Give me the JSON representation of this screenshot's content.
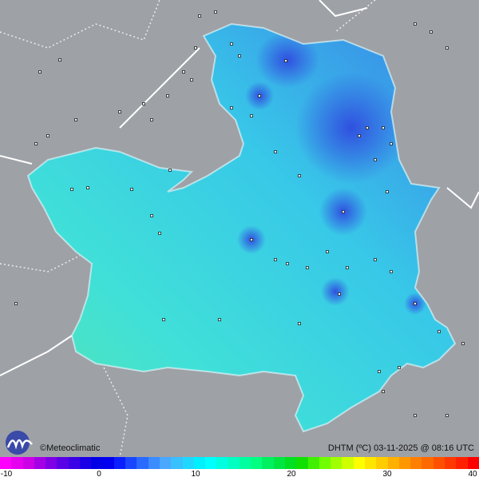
{
  "map": {
    "credit": "©Meteoclimatic",
    "variable": "DHTM (ºC)",
    "timestamp": "03-11-2025 @ 08:16 UTC",
    "logo_text": "m"
  },
  "legend": {
    "min": -10,
    "max": 40,
    "ticks": [
      "-10",
      "0",
      "10",
      "20",
      "30",
      "40"
    ],
    "colors": [
      "#ff00ff",
      "#e600f0",
      "#cc00e6",
      "#a400e6",
      "#8000e6",
      "#5a00e6",
      "#3a00e6",
      "#1a00e6",
      "#0000e6",
      "#0000f0",
      "#0a1eff",
      "#1a46ff",
      "#2a6aff",
      "#3a8cff",
      "#4aa8ff",
      "#38c0ff",
      "#20d8ff",
      "#00f0ff",
      "#00ffff",
      "#00ffe0",
      "#00ffc0",
      "#00ffa0",
      "#00ff80",
      "#00f060",
      "#00e640",
      "#00e020",
      "#10e000",
      "#40f000",
      "#70ff00",
      "#a0ff00",
      "#d0ff00",
      "#ffff00",
      "#ffe600",
      "#ffcc00",
      "#ffb000",
      "#ff9800",
      "#ff8000",
      "#ff6a00",
      "#ff5000",
      "#ff3800",
      "#ff2000",
      "#ff0000"
    ]
  }
}
